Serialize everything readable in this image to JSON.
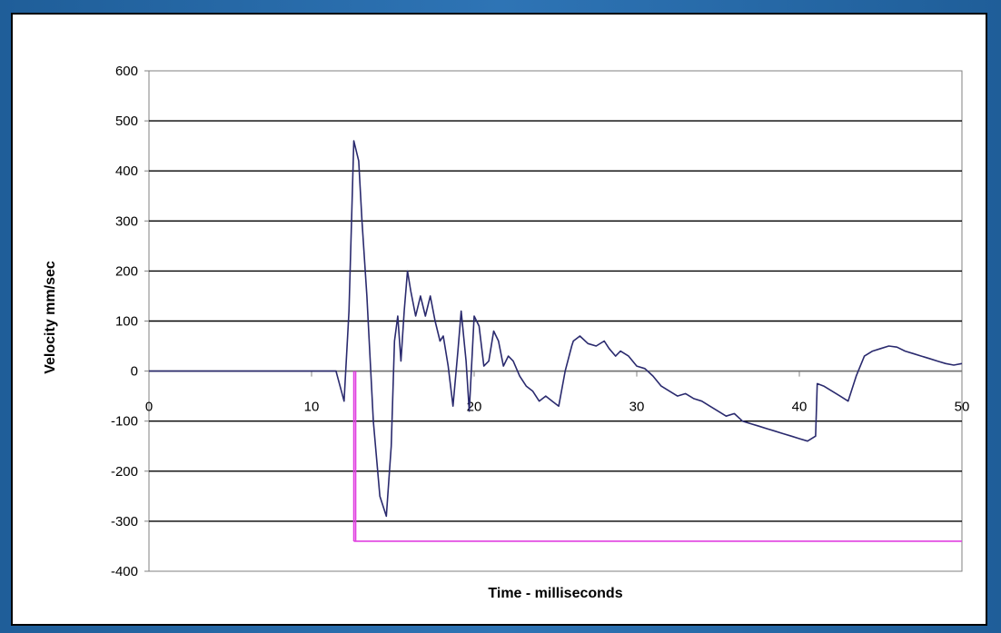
{
  "chart_data": {
    "type": "line",
    "title": "",
    "xlabel": "Time - milliseconds",
    "ylabel": "Velocity  mm/sec",
    "xlim": [
      0,
      50
    ],
    "ylim": [
      -400,
      600
    ],
    "x_ticks": [
      "0",
      "10",
      "20",
      "30",
      "40",
      "50"
    ],
    "y_ticks": [
      "600",
      "500",
      "400",
      "300",
      "200",
      "100",
      "0",
      "-100",
      "-200",
      "-300",
      "-400"
    ],
    "grid": "horizontal",
    "legend": "none",
    "colors": {
      "velocity": "#2a2a6e",
      "trigger": "#e040e0",
      "grid": "#000000",
      "plot_border": "#808080"
    },
    "series": [
      {
        "values_x": [
          0,
          4,
          8,
          11.5,
          12.0,
          12.3,
          12.6,
          12.9,
          13.1,
          13.4,
          13.8,
          14.2,
          14.6,
          14.9,
          15.1,
          15.3,
          15.5,
          15.7,
          15.9,
          16.1,
          16.4,
          16.7,
          17.0,
          17.3,
          17.6,
          17.9,
          18.1,
          18.4,
          18.7,
          19.0,
          19.2,
          19.5,
          19.7,
          20.0,
          20.3,
          20.6,
          20.9,
          21.2,
          21.5,
          21.8,
          22.1,
          22.4,
          22.8,
          23.2,
          23.6,
          24.0,
          24.4,
          24.8,
          25.2,
          25.6,
          26.0,
          26.1,
          26.5,
          27.0,
          27.5,
          28.0,
          28.3,
          28.7,
          29.0,
          29.5,
          30.0,
          30.5,
          31.0,
          31.5,
          32.0,
          32.5,
          33.0,
          33.5,
          34.0,
          34.5,
          35.0,
          35.5,
          36.0,
          36.5,
          37.0,
          37.5,
          38.0,
          38.5,
          39.0,
          39.5,
          40.0,
          40.5,
          41.0,
          41.1,
          41.5,
          42.0,
          42.5,
          43.0,
          43.5,
          44.0,
          44.5,
          45.0,
          45.5,
          46.0,
          46.5,
          47.0,
          47.5,
          48.0,
          48.5,
          49.0,
          49.5,
          50.0
        ],
        "values": [
          0,
          0,
          0,
          0,
          -60,
          120,
          460,
          420,
          300,
          150,
          -100,
          -250,
          -290,
          -150,
          60,
          110,
          20,
          120,
          200,
          160,
          110,
          150,
          110,
          150,
          100,
          60,
          70,
          10,
          -70,
          40,
          120,
          20,
          -80,
          110,
          90,
          10,
          20,
          80,
          60,
          10,
          30,
          20,
          -10,
          -30,
          -40,
          -60,
          -50,
          -60,
          -70,
          0,
          50,
          60,
          70,
          55,
          50,
          60,
          45,
          30,
          40,
          30,
          10,
          5,
          -10,
          -30,
          -40,
          -50,
          -45,
          -55,
          -60,
          -70,
          -80,
          -90,
          -85,
          -100,
          -105,
          -110,
          -115,
          -120,
          -125,
          -130,
          -135,
          -140,
          -130,
          -25,
          -30,
          -40,
          -50,
          -60,
          -10,
          30,
          40,
          45,
          50,
          48,
          40,
          35,
          30,
          25,
          20,
          15,
          12,
          15
        ]
      }
    ],
    "trigger": {
      "time": 12.6,
      "baseline": -340
    }
  }
}
